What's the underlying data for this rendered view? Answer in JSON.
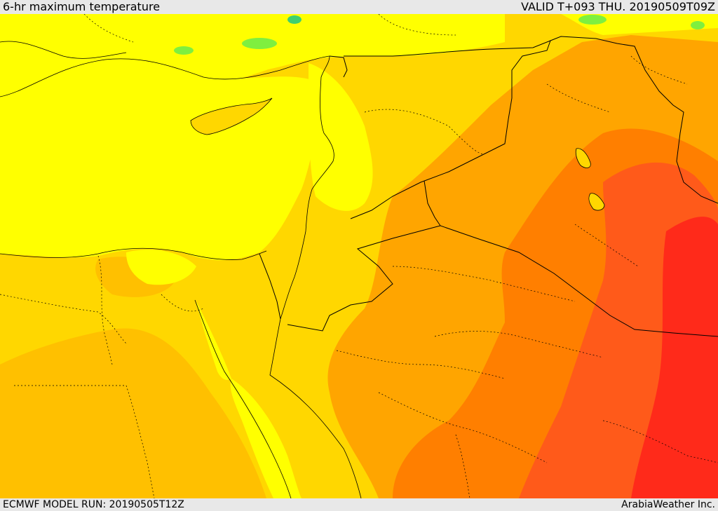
{
  "header": {
    "title": "6-hr maximum temperature",
    "valid": "VALID T+093 THU. 20190509T09Z"
  },
  "footer": {
    "model_run": "ECMWF MODEL RUN: 20190505T12Z",
    "credit": "ArabiaWeather Inc."
  },
  "colors": {
    "yellow": "#ffff00",
    "gold": "#ffd700",
    "light_orange": "#ffc000",
    "orange": "#ffa500",
    "dark_orange": "#ff7f00",
    "red_orange": "#ff5a1a",
    "red": "#ff2a1a",
    "green": "#7fef3f",
    "boundary": "#000000"
  }
}
